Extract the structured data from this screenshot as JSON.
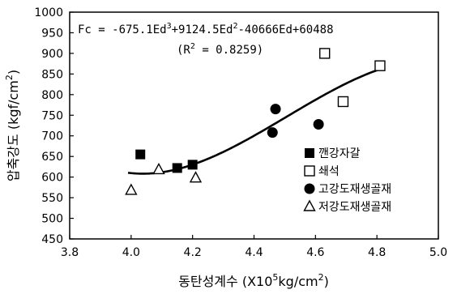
{
  "chart_data": {
    "type": "scatter",
    "xlabel_main": "동탄성계수 (X10",
    "xlabel_sup": "5",
    "xlabel_tail": "kg/cm",
    "xlabel_sup2": "2",
    "xlabel_close": ")",
    "ylabel_main": "압축강도 (kgf/cm",
    "ylabel_sup": "2",
    "ylabel_close": ")",
    "xlim": [
      3.8,
      5.0
    ],
    "ylim": [
      450,
      1000
    ],
    "xticks": [
      3.8,
      4.0,
      4.2,
      4.4,
      4.6,
      4.8,
      5.0
    ],
    "xtick_labels": [
      "3.8",
      "4.0",
      "4.2",
      "4.4",
      "4.6",
      "4.8",
      "5.0"
    ],
    "yticks": [
      450,
      500,
      550,
      600,
      650,
      700,
      750,
      800,
      850,
      900,
      950,
      1000
    ],
    "ytick_labels": [
      "450",
      "500",
      "550",
      "600",
      "650",
      "700",
      "750",
      "800",
      "850",
      "900",
      "950",
      "1000"
    ],
    "equation": {
      "line1_prefix": "Fc = -675.1Ed",
      "line1_sup1": "3",
      "line1_mid": "+9124.5Ed",
      "line1_sup2": "2",
      "line1_suffix": "-40666Ed+60488",
      "line2": "(R",
      "line2_sup": "2",
      "line2_suffix": " = 0.8259)"
    },
    "fit_coefficients": [
      -675.1,
      9124.5,
      -40666,
      60488
    ],
    "fit_range": [
      3.99,
      4.81
    ],
    "series": [
      {
        "name": "깬강자갈",
        "marker": "square-filled",
        "x": [
          4.03,
          4.15,
          4.2
        ],
        "y": [
          655,
          622,
          630
        ]
      },
      {
        "name": "쇄석",
        "marker": "square-open",
        "x": [
          4.63,
          4.69,
          4.81
        ],
        "y": [
          900,
          783,
          870
        ]
      },
      {
        "name": "고강도재생골재",
        "marker": "circle-filled",
        "x": [
          4.46,
          4.47,
          4.61
        ],
        "y": [
          708,
          765,
          728
        ]
      },
      {
        "name": "저강도재생골재",
        "marker": "triangle-open",
        "x": [
          4.0,
          4.09,
          4.21
        ],
        "y": [
          568,
          618,
          598
        ]
      }
    ]
  }
}
